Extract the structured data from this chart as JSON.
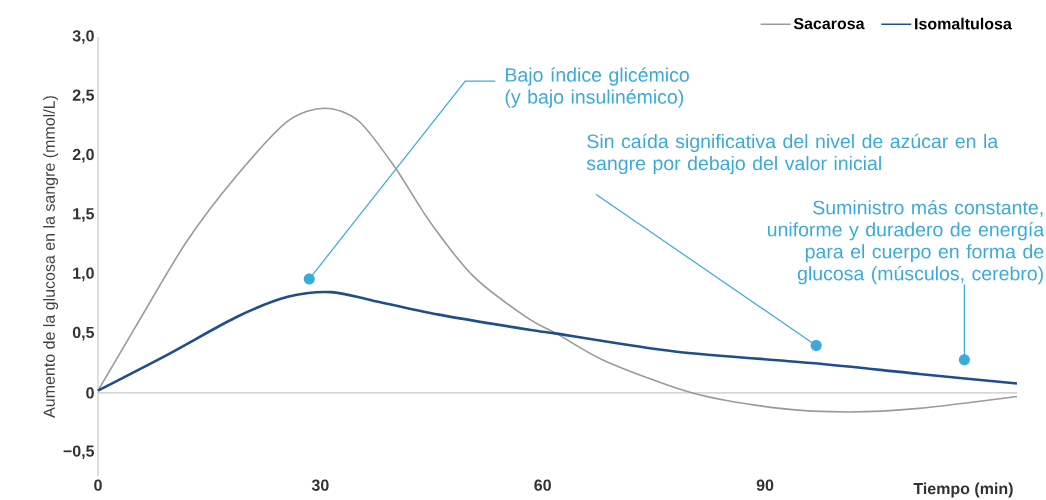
{
  "chart_data": {
    "type": "line",
    "xlabel": "Tiempo (min)",
    "ylabel": "Aumento de la glucosa en la sangre (mmol/L)",
    "xlim": [
      0,
      124
    ],
    "ylim": [
      -0.7,
      3.0
    ],
    "xticks": [
      0,
      30,
      60,
      90
    ],
    "yticks": [
      {
        "value": -0.5,
        "label": "−0,5"
      },
      0,
      {
        "value": 0.5,
        "label": "0,5"
      },
      {
        "value": 1,
        "label": "1,0"
      },
      {
        "value": 1.5,
        "label": "1,5"
      },
      {
        "value": 2,
        "label": "2,0"
      },
      {
        "value": 2.5,
        "label": "2,5"
      },
      {
        "value": 3,
        "label": "3,0"
      }
    ],
    "legend": "top right",
    "marker": "none",
    "series": [
      {
        "name": "Sacarosa",
        "color": "#9a9a9a",
        "x": [
          0,
          5,
          11.9,
          18.7,
          25.6,
          30.6,
          35.2,
          40.2,
          44.8,
          50.7,
          58,
          61.9,
          68.4,
          80.2,
          92,
          101.4,
          110.8,
          124
        ],
        "values": [
          0.02,
          0.55,
          1.27,
          1.83,
          2.29,
          2.4,
          2.29,
          1.89,
          1.44,
          0.98,
          0.63,
          0.5,
          0.27,
          0,
          -0.13,
          -0.16,
          -0.13,
          -0.03
        ]
      },
      {
        "name": "Isomaltulosa",
        "color": "#1f4e8c",
        "x": [
          0,
          9.6,
          18.7,
          25.6,
          31.5,
          37,
          46,
          58.4,
          61.9,
          77.8,
          96.7,
          110.8,
          124
        ],
        "values": [
          0.02,
          0.33,
          0.64,
          0.81,
          0.85,
          0.78,
          0.66,
          0.53,
          0.5,
          0.35,
          0.25,
          0.16,
          0.08
        ]
      }
    ],
    "annotations": [
      {
        "text": "Bajo índice glicémico (y bajo insulinémico)",
        "x": 28.5,
        "y": 0.96
      },
      {
        "text": "Sin caída significativa del nivel de azúcar en la sangre por debajo del valor inicial",
        "x": 96.9,
        "y": 0.4
      },
      {
        "text": "Suministro más constante, uniforme y duradero de energía para el cuerpo en forma de glucosa (músculos, cerebro)",
        "x": 116.9,
        "y": 0.28
      }
    ]
  }
}
